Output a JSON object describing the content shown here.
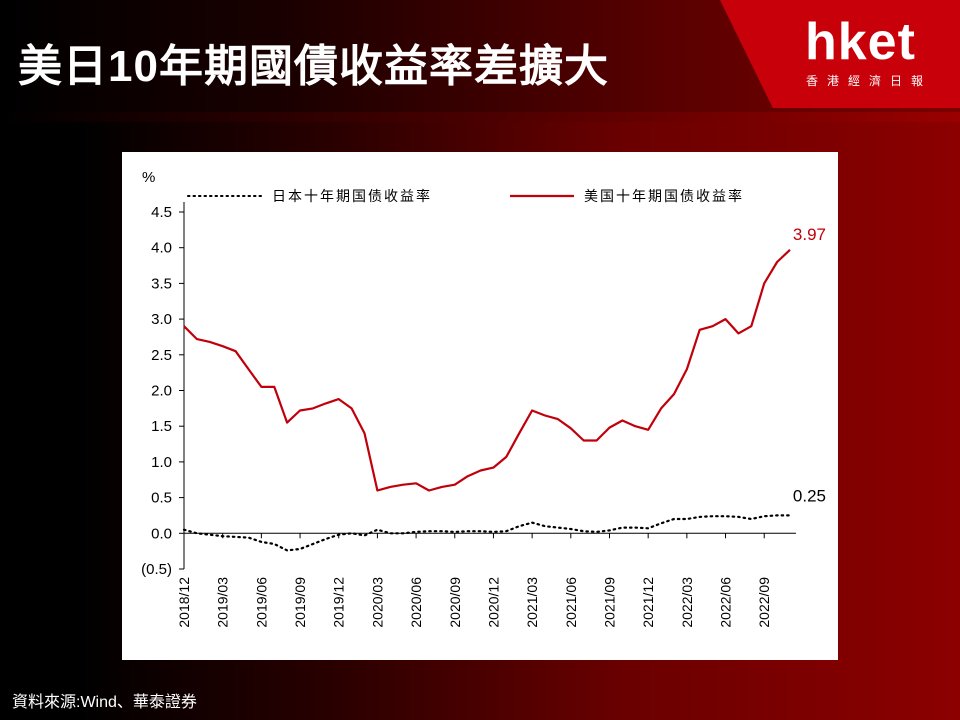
{
  "header": {
    "title": "美日10年期國債收益率差擴大"
  },
  "logo": {
    "word": "hket",
    "sub": "香港經濟日報"
  },
  "source": "資料來源:Wind、華泰證券",
  "colors": {
    "us_series": "#c0000a",
    "jp_series": "#000000",
    "logo_bg": "#c8000a"
  },
  "chart_data": {
    "type": "line",
    "ylabel": "%",
    "ylim": [
      -0.5,
      4.5
    ],
    "yticks": [
      {
        "v": 4.5,
        "label": "4.5"
      },
      {
        "v": 4.0,
        "label": "4.0"
      },
      {
        "v": 3.5,
        "label": "3.5"
      },
      {
        "v": 3.0,
        "label": "3.0"
      },
      {
        "v": 2.5,
        "label": "2.5"
      },
      {
        "v": 2.0,
        "label": "2.0"
      },
      {
        "v": 1.5,
        "label": "1.5"
      },
      {
        "v": 1.0,
        "label": "1.0"
      },
      {
        "v": 0.5,
        "label": "0.5"
      },
      {
        "v": 0.0,
        "label": "0.0"
      },
      {
        "v": -0.5,
        "label": "(0.5)"
      }
    ],
    "xlim": [
      "2018/12",
      "2022/11"
    ],
    "xticks": [
      "2018/12",
      "2019/03",
      "2019/06",
      "2019/09",
      "2019/12",
      "2020/03",
      "2020/06",
      "2020/09",
      "2020/12",
      "2021/03",
      "2021/06",
      "2021/09",
      "2021/12",
      "2022/03",
      "2022/06",
      "2022/09"
    ],
    "legend_position": "top",
    "annotations": [
      {
        "series": "美国十年期国债收益率",
        "text": "3.97"
      },
      {
        "series": "日本十年期国债收益率",
        "text": "0.25"
      }
    ],
    "series": [
      {
        "name": "日本十年期国债收益率",
        "style": "dotted",
        "x": [
          "2018/12",
          "2019/01",
          "2019/02",
          "2019/03",
          "2019/04",
          "2019/05",
          "2019/06",
          "2019/07",
          "2019/08",
          "2019/09",
          "2019/10",
          "2019/11",
          "2019/12",
          "2020/01",
          "2020/02",
          "2020/03",
          "2020/04",
          "2020/05",
          "2020/06",
          "2020/07",
          "2020/08",
          "2020/09",
          "2020/10",
          "2020/11",
          "2020/12",
          "2021/01",
          "2021/02",
          "2021/03",
          "2021/04",
          "2021/05",
          "2021/06",
          "2021/07",
          "2021/08",
          "2021/09",
          "2021/10",
          "2021/11",
          "2021/12",
          "2022/01",
          "2022/02",
          "2022/03",
          "2022/04",
          "2022/05",
          "2022/06",
          "2022/07",
          "2022/08",
          "2022/09",
          "2022/10",
          "2022/11"
        ],
        "values": [
          0.05,
          0.0,
          -0.02,
          -0.04,
          -0.05,
          -0.06,
          -0.12,
          -0.15,
          -0.24,
          -0.22,
          -0.15,
          -0.08,
          -0.02,
          0.0,
          -0.03,
          0.05,
          0.0,
          0.0,
          0.02,
          0.03,
          0.03,
          0.02,
          0.03,
          0.03,
          0.02,
          0.03,
          0.1,
          0.15,
          0.1,
          0.08,
          0.06,
          0.03,
          0.02,
          0.04,
          0.08,
          0.08,
          0.07,
          0.14,
          0.2,
          0.2,
          0.23,
          0.24,
          0.24,
          0.23,
          0.2,
          0.24,
          0.25,
          0.25
        ]
      },
      {
        "name": "美国十年期国债收益率",
        "style": "solid",
        "x": [
          "2018/12",
          "2019/01",
          "2019/02",
          "2019/03",
          "2019/04",
          "2019/05",
          "2019/06",
          "2019/07",
          "2019/08",
          "2019/09",
          "2019/10",
          "2019/11",
          "2019/12",
          "2020/01",
          "2020/02",
          "2020/03",
          "2020/04",
          "2020/05",
          "2020/06",
          "2020/07",
          "2020/08",
          "2020/09",
          "2020/10",
          "2020/11",
          "2020/12",
          "2021/01",
          "2021/02",
          "2021/03",
          "2021/04",
          "2021/05",
          "2021/06",
          "2021/07",
          "2021/08",
          "2021/09",
          "2021/10",
          "2021/11",
          "2021/12",
          "2022/01",
          "2022/02",
          "2022/03",
          "2022/04",
          "2022/05",
          "2022/06",
          "2022/07",
          "2022/08",
          "2022/09",
          "2022/10",
          "2022/11"
        ],
        "values": [
          2.9,
          2.72,
          2.68,
          2.62,
          2.55,
          2.3,
          2.05,
          2.05,
          1.55,
          1.72,
          1.75,
          1.82,
          1.88,
          1.75,
          1.4,
          0.6,
          0.65,
          0.68,
          0.7,
          0.6,
          0.65,
          0.68,
          0.8,
          0.88,
          0.92,
          1.07,
          1.4,
          1.72,
          1.65,
          1.6,
          1.47,
          1.3,
          1.3,
          1.48,
          1.58,
          1.5,
          1.45,
          1.75,
          1.95,
          2.3,
          2.85,
          2.9,
          3.0,
          2.8,
          2.9,
          3.5,
          3.8,
          3.97
        ]
      }
    ]
  }
}
